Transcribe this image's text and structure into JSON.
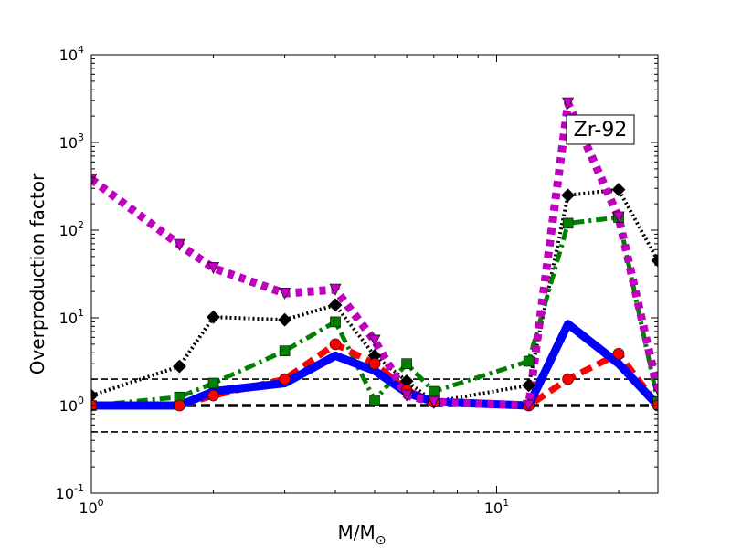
{
  "chart_data": {
    "type": "line",
    "title": "",
    "xlabel": "M/M",
    "xlabel_subscript": "⊙",
    "ylabel": "Overproduction factor",
    "xscale": "log",
    "yscale": "log",
    "xlim": [
      1,
      25
    ],
    "ylim": [
      0.1,
      10000
    ],
    "x_ticks": [
      {
        "value": 1,
        "base": "10",
        "exp": "0"
      },
      {
        "value": 10,
        "base": "10",
        "exp": "1"
      }
    ],
    "y_ticks": [
      {
        "value": 0.1,
        "base": "10",
        "exp": "-1"
      },
      {
        "value": 1,
        "base": "10",
        "exp": "0"
      },
      {
        "value": 10,
        "base": "10",
        "exp": "1"
      },
      {
        "value": 100,
        "base": "10",
        "exp": "2"
      },
      {
        "value": 1000,
        "base": "10",
        "exp": "3"
      },
      {
        "value": 10000,
        "base": "10",
        "exp": "4"
      }
    ],
    "annotation": "Zr-92",
    "reference_lines": [
      {
        "y": 2,
        "style": "thin-dashed",
        "color": "#000000"
      },
      {
        "y": 1,
        "style": "thick-dashed",
        "color": "#000000"
      },
      {
        "y": 0.5,
        "style": "thin-dashed",
        "color": "#000000"
      }
    ],
    "series": [
      {
        "color": "#000000",
        "linestyle": "dotted",
        "marker": "diamond",
        "x": [
          1,
          1.65,
          2,
          3,
          4,
          5,
          6,
          7,
          12,
          15,
          20,
          25
        ],
        "y": [
          1.3,
          2.8,
          10.2,
          9.5,
          14,
          3.7,
          1.9,
          1.1,
          1.7,
          250,
          290,
          45
        ]
      },
      {
        "color": "#008000",
        "linestyle": "dashdot",
        "marker": "square",
        "x": [
          1,
          1.65,
          2,
          3,
          4,
          5,
          6,
          7,
          12,
          15,
          20,
          25
        ],
        "y": [
          1.0,
          1.25,
          1.8,
          4.2,
          9.0,
          1.15,
          3.0,
          1.45,
          3.2,
          120,
          140,
          1.1
        ]
      },
      {
        "color": "#ff0000",
        "linestyle": "dashed",
        "marker": "circle",
        "x": [
          1,
          1.65,
          2,
          3,
          4,
          5,
          6,
          7,
          12,
          15,
          20,
          25
        ],
        "y": [
          1.0,
          1.0,
          1.3,
          2.0,
          5.0,
          3.0,
          1.5,
          1.1,
          1.0,
          2.0,
          3.9,
          1.0
        ]
      },
      {
        "color": "#0000ff",
        "linestyle": "solid",
        "marker": "none",
        "x": [
          1,
          1.65,
          2,
          3,
          4,
          5,
          6,
          7,
          12,
          15,
          20,
          25
        ],
        "y": [
          1.0,
          1.0,
          1.45,
          1.8,
          3.7,
          2.5,
          1.4,
          1.1,
          1.0,
          8.5,
          3.0,
          1.0
        ]
      },
      {
        "color": "#bf00bf",
        "linestyle": "dotted",
        "marker": "triangle-down",
        "x": [
          1,
          1.65,
          2,
          3,
          4,
          5,
          6,
          7,
          12,
          15,
          20,
          25
        ],
        "y": [
          380,
          68,
          37,
          19,
          21,
          5.5,
          1.3,
          1.1,
          1.0,
          2800,
          140,
          1.5
        ]
      }
    ]
  }
}
